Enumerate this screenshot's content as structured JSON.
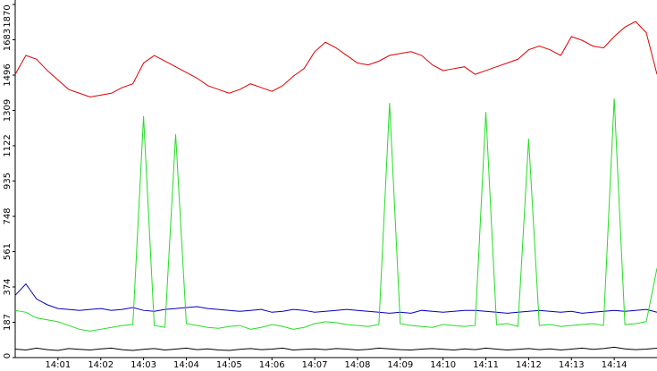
{
  "chart_data": {
    "type": "line",
    "x": [
      0,
      0.25,
      0.5,
      0.75,
      1,
      1.25,
      1.5,
      1.75,
      2,
      2.25,
      2.5,
      2.75,
      3,
      3.25,
      3.5,
      3.75,
      4,
      4.25,
      4.5,
      4.75,
      5,
      5.25,
      5.5,
      5.75,
      6,
      6.25,
      6.5,
      6.75,
      7,
      7.25,
      7.5,
      7.75,
      8,
      8.25,
      8.5,
      8.75,
      9,
      9.25,
      9.5,
      9.75,
      10,
      10.25,
      10.5,
      10.75,
      11,
      11.25,
      11.5,
      11.75,
      12,
      12.25,
      12.5,
      12.75,
      13,
      13.25,
      13.5,
      13.75,
      14,
      14.25,
      14.5,
      14.75,
      15
    ],
    "xlim": [
      0,
      15
    ],
    "xticks": [
      {
        "value": 1,
        "label": "14:01"
      },
      {
        "value": 2,
        "label": "14:02"
      },
      {
        "value": 3,
        "label": "14:03"
      },
      {
        "value": 4,
        "label": "14:04"
      },
      {
        "value": 5,
        "label": "14:05"
      },
      {
        "value": 6,
        "label": "14:06"
      },
      {
        "value": 7,
        "label": "14:07"
      },
      {
        "value": 8,
        "label": "14:08"
      },
      {
        "value": 9,
        "label": "14:09"
      },
      {
        "value": 10,
        "label": "14:10"
      },
      {
        "value": 11,
        "label": "14:11"
      },
      {
        "value": 12,
        "label": "14:12"
      },
      {
        "value": 13,
        "label": "14:13"
      },
      {
        "value": 14,
        "label": "14:14"
      }
    ],
    "ylim": [
      0,
      1870
    ],
    "yticks": [
      0,
      187,
      374,
      561,
      748,
      935,
      1122,
      1309,
      1496,
      1683,
      1870
    ],
    "series": [
      {
        "color": "#e00000",
        "values": [
          1500,
          1600,
          1580,
          1520,
          1470,
          1420,
          1400,
          1380,
          1390,
          1400,
          1430,
          1450,
          1560,
          1600,
          1570,
          1540,
          1510,
          1480,
          1440,
          1420,
          1400,
          1420,
          1450,
          1430,
          1410,
          1440,
          1490,
          1530,
          1620,
          1670,
          1640,
          1600,
          1560,
          1550,
          1570,
          1600,
          1610,
          1620,
          1600,
          1550,
          1520,
          1530,
          1540,
          1500,
          1520,
          1540,
          1560,
          1580,
          1630,
          1650,
          1630,
          1600,
          1700,
          1680,
          1650,
          1640,
          1700,
          1750,
          1780,
          1720,
          1500
        ]
      },
      {
        "color": "#0000c0",
        "values": [
          330,
          390,
          310,
          280,
          260,
          255,
          250,
          255,
          260,
          250,
          255,
          265,
          250,
          245,
          255,
          260,
          265,
          270,
          260,
          255,
          250,
          245,
          250,
          255,
          240,
          245,
          255,
          250,
          240,
          245,
          250,
          255,
          250,
          245,
          240,
          235,
          240,
          235,
          250,
          245,
          240,
          245,
          250,
          250,
          245,
          240,
          235,
          240,
          245,
          250,
          245,
          240,
          245,
          235,
          240,
          245,
          250,
          245,
          250,
          255,
          240
        ]
      },
      {
        "color": "#22dd22",
        "values": [
          250,
          240,
          210,
          200,
          190,
          170,
          150,
          140,
          150,
          160,
          170,
          175,
          1278,
          170,
          160,
          1183,
          180,
          170,
          160,
          155,
          165,
          170,
          150,
          160,
          175,
          165,
          150,
          160,
          180,
          190,
          185,
          175,
          170,
          165,
          175,
          1348,
          180,
          170,
          165,
          160,
          175,
          170,
          165,
          170,
          1300,
          175,
          180,
          165,
          1159,
          170,
          175,
          165,
          170,
          175,
          180,
          170,
          1372,
          175,
          180,
          190,
          473
        ]
      },
      {
        "color": "#000000",
        "values": [
          45,
          40,
          50,
          42,
          38,
          48,
          44,
          40,
          46,
          50,
          42,
          38,
          44,
          48,
          40,
          45,
          50,
          42,
          46,
          40,
          38,
          44,
          48,
          42,
          45,
          50,
          40,
          44,
          46,
          42,
          48,
          45,
          40,
          44,
          50,
          46,
          42,
          40,
          45,
          48,
          44,
          40,
          46,
          42,
          50,
          45,
          40,
          44,
          48,
          42,
          46,
          40,
          45,
          50,
          44,
          48,
          55,
          46,
          42,
          45,
          50
        ]
      }
    ]
  }
}
